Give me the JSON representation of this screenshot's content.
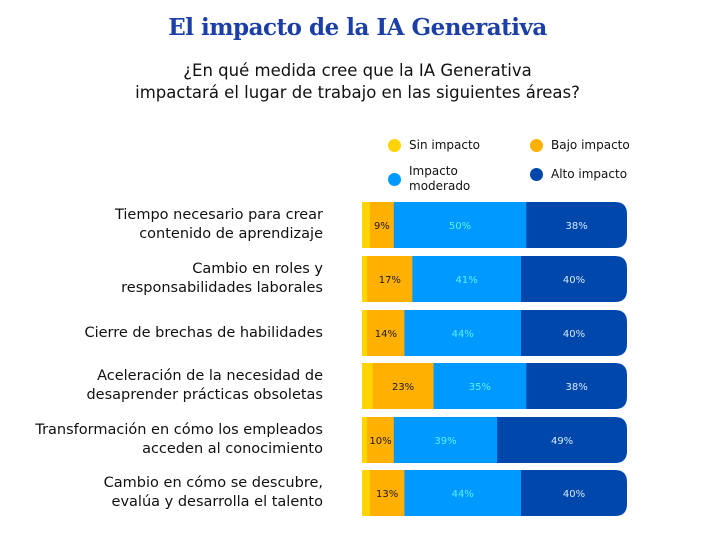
{
  "chart_data": {
    "type": "bar",
    "orientation": "horizontal",
    "stacked": true,
    "title": "El impacto de la IA Generativa",
    "subtitle": [
      "¿En qué medida cree que la IA Generativa",
      "impactará el lugar de trabajo en las siguientes áreas?"
    ],
    "categories": [
      [
        "Tiempo necesario para crear",
        "contenido de aprendizaje"
      ],
      [
        "Cambio en roles y",
        "responsabilidades laborales"
      ],
      [
        "Cierre de brechas de habilidades"
      ],
      [
        "Aceleración de la necesidad de",
        "desaprender prácticas obsoletas"
      ],
      [
        "Transformación en cómo los empleados",
        "acceden al conocimiento"
      ],
      [
        "Cambio en cómo se descubre,",
        "evalúa y desarrolla el talento"
      ]
    ],
    "series": [
      {
        "name": "Sin impacto",
        "color": "#FFD400",
        "label_color": "#111111",
        "show_labels": false,
        "values": [
          3,
          2,
          2,
          4,
          2,
          3
        ]
      },
      {
        "name": "Bajo impacto",
        "color": "#FFB000",
        "label_color": "#1a1a1a",
        "show_labels": true,
        "values": [
          9,
          17,
          14,
          23,
          10,
          13
        ]
      },
      {
        "name": "Impacto moderado",
        "color": "#0099FF",
        "label_color": "#5CF0FF",
        "show_labels": true,
        "values": [
          50,
          41,
          44,
          35,
          39,
          44
        ]
      },
      {
        "name": "Alto impacto",
        "color": "#0047AB",
        "label_color": "#D6E8FF",
        "show_labels": true,
        "values": [
          38,
          40,
          40,
          38,
          49,
          40
        ]
      }
    ],
    "unit": "%",
    "xlim": [
      0,
      100
    ],
    "legend_position": "top-right",
    "grid": false
  },
  "legend_labels": {
    "sin": "Sin impacto",
    "bajo": "Bajo impacto",
    "moderado": [
      "Impacto",
      "moderado"
    ],
    "alto": "Alto impacto"
  }
}
